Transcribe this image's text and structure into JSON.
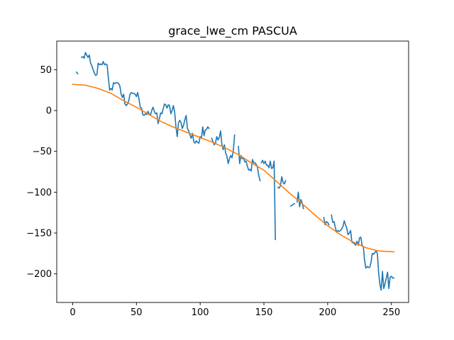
{
  "chart_data": {
    "type": "line",
    "title": "grace_lwe_cm PASCUA",
    "xlabel": "",
    "ylabel": "",
    "xlim": [
      -12.5,
      263.5
    ],
    "ylim": [
      -235,
      85
    ],
    "xticks": [
      0,
      50,
      100,
      150,
      200,
      250
    ],
    "yticks": [
      50,
      0,
      -50,
      -100,
      -150,
      -200
    ],
    "grid": false,
    "legend": "none",
    "series": [
      {
        "color": "#1f77b4",
        "segments": [
          [
            [
              3,
              47
            ],
            [
              4,
              45
            ]
          ],
          [
            [
              7,
              65
            ],
            [
              8,
              66
            ],
            [
              9,
              64
            ],
            [
              10,
              71
            ],
            [
              11,
              68
            ],
            [
              12,
              65
            ],
            [
              13,
              68
            ],
            [
              14,
              58
            ],
            [
              15,
              55
            ],
            [
              16,
              50
            ],
            [
              17,
              46
            ],
            [
              18,
              43
            ],
            [
              19,
              44
            ],
            [
              20,
              58
            ],
            [
              21,
              56
            ],
            [
              22,
              57
            ],
            [
              23,
              56
            ],
            [
              24,
              60
            ],
            [
              25,
              56
            ],
            [
              26,
              57
            ],
            [
              27,
              56
            ],
            [
              28,
              40
            ],
            [
              29,
              25
            ],
            [
              30,
              27
            ],
            [
              31,
              25
            ],
            [
              32,
              34
            ],
            [
              33,
              33
            ],
            [
              34,
              34
            ],
            [
              35,
              34
            ],
            [
              36,
              33
            ],
            [
              37,
              30
            ],
            [
              38,
              20
            ],
            [
              39,
              16
            ],
            [
              40,
              20
            ],
            [
              41,
              8
            ],
            [
              42,
              6
            ],
            [
              43,
              8
            ],
            [
              44,
              12
            ],
            [
              45,
              20
            ],
            [
              46,
              22
            ],
            [
              47,
              21
            ],
            [
              48,
              21
            ],
            [
              49,
              20
            ],
            [
              50,
              17
            ],
            [
              51,
              22
            ],
            [
              52,
              14
            ],
            [
              53,
              4
            ],
            [
              54,
              3
            ],
            [
              55,
              -5
            ],
            [
              56,
              -6
            ],
            [
              57,
              -4
            ],
            [
              58,
              -5
            ],
            [
              59,
              -1
            ],
            [
              60,
              -4
            ],
            [
              61,
              -6
            ],
            [
              62,
              0
            ],
            [
              63,
              4
            ],
            [
              64,
              -1
            ],
            [
              65,
              -4
            ],
            [
              66,
              -3
            ],
            [
              67,
              -16
            ],
            [
              68,
              -10
            ],
            [
              69,
              -3
            ],
            [
              70,
              -4
            ],
            [
              71,
              2
            ],
            [
              72,
              8
            ],
            [
              73,
              7
            ],
            [
              74,
              3
            ],
            [
              75,
              7
            ],
            [
              76,
              6
            ],
            [
              77,
              -4
            ],
            [
              78,
              0
            ],
            [
              79,
              6
            ],
            [
              80,
              -2
            ],
            [
              81,
              -20
            ],
            [
              82,
              -32
            ],
            [
              83,
              -15
            ],
            [
              84,
              -12
            ],
            [
              85,
              -15
            ],
            [
              86,
              -22
            ],
            [
              87,
              -18
            ],
            [
              88,
              -11
            ],
            [
              89,
              -6
            ],
            [
              90,
              -22
            ],
            [
              91,
              -25
            ],
            [
              92,
              -30
            ],
            [
              93,
              -34
            ],
            [
              94,
              -28
            ],
            [
              95,
              -38
            ],
            [
              96,
              -40
            ],
            [
              97,
              -37
            ],
            [
              98,
              -39
            ],
            [
              99,
              -40
            ],
            [
              100,
              -32
            ],
            [
              101,
              -34
            ],
            [
              102,
              -20
            ],
            [
              103,
              -31
            ],
            [
              104,
              -24
            ],
            [
              105,
              -23
            ],
            [
              106,
              -20
            ],
            [
              107,
              -22
            ]
          ],
          [
            [
              109,
              -34
            ],
            [
              110,
              -38
            ],
            [
              111,
              -42
            ],
            [
              112,
              -40
            ],
            [
              113,
              -32
            ],
            [
              114,
              -36
            ],
            [
              115,
              -33
            ],
            [
              116,
              -25
            ],
            [
              117,
              -41
            ],
            [
              118,
              -48
            ],
            [
              119,
              -42
            ],
            [
              120,
              -52
            ],
            [
              121,
              -56
            ],
            [
              122,
              -65
            ],
            [
              123,
              -59
            ],
            [
              124,
              -55
            ],
            [
              125,
              -58
            ],
            [
              126,
              -49
            ],
            [
              127,
              -30
            ]
          ],
          [
            [
              130,
              -44
            ],
            [
              131,
              -65
            ],
            [
              132,
              -55
            ],
            [
              133,
              -59
            ],
            [
              134,
              -58
            ],
            [
              135,
              -63
            ],
            [
              136,
              -62
            ],
            [
              137,
              -68
            ],
            [
              138,
              -73
            ],
            [
              139,
              -72
            ],
            [
              140,
              -74
            ],
            [
              141,
              -60
            ],
            [
              142,
              -64
            ],
            [
              143,
              -64
            ],
            [
              144,
              -66
            ],
            [
              145,
              -70
            ],
            [
              146,
              -80
            ],
            [
              147,
              -86
            ]
          ],
          [
            [
              148,
              -64
            ],
            [
              149,
              -61
            ],
            [
              150,
              -65
            ],
            [
              151,
              -62
            ],
            [
              152,
              -67
            ],
            [
              153,
              -67
            ],
            [
              154,
              -70
            ],
            [
              155,
              -62
            ],
            [
              156,
              -71
            ],
            [
              157,
              -70
            ],
            [
              158,
              -62
            ],
            [
              159,
              -158
            ]
          ],
          [
            [
              161,
              -94
            ],
            [
              162,
              -95
            ],
            [
              163,
              -92
            ],
            [
              164,
              -81
            ],
            [
              165,
              -88
            ],
            [
              166,
              -90
            ],
            [
              167,
              -86
            ]
          ],
          [
            [
              171,
              -117
            ],
            [
              172,
              -116
            ],
            [
              173,
              -115
            ],
            [
              174,
              -114
            ]
          ],
          [
            [
              176,
              -112
            ],
            [
              177,
              -100
            ],
            [
              178,
              -118
            ],
            [
              179,
              -109
            ],
            [
              180,
              -113
            ],
            [
              181,
              -120
            ]
          ],
          [
            [
              197,
              -131
            ],
            [
              198,
              -140
            ],
            [
              199,
              -136
            ],
            [
              200,
              -137
            ],
            [
              201,
              -140
            ]
          ],
          [
            [
              203,
              -128
            ],
            [
              204,
              -137
            ],
            [
              205,
              -136
            ],
            [
              206,
              -143
            ],
            [
              207,
              -149
            ],
            [
              208,
              -147
            ],
            [
              209,
              -148
            ],
            [
              210,
              -147
            ],
            [
              211,
              -145
            ],
            [
              212,
              -142
            ],
            [
              213,
              -135
            ],
            [
              214,
              -140
            ],
            [
              215,
              -144
            ],
            [
              216,
              -152
            ],
            [
              217,
              -150
            ],
            [
              218,
              -147
            ],
            [
              219,
              -161
            ],
            [
              220,
              -162
            ],
            [
              221,
              -163
            ],
            [
              222,
              -165
            ],
            [
              223,
              -160
            ],
            [
              224,
              -165
            ],
            [
              225,
              -156
            ],
            [
              226,
              -155
            ],
            [
              227,
              -165
            ],
            [
              228,
              -167
            ],
            [
              229,
              -184
            ],
            [
              230,
              -193
            ],
            [
              231,
              -191
            ],
            [
              232,
              -192
            ],
            [
              233,
              -192
            ],
            [
              234,
              -186
            ],
            [
              235,
              -175
            ],
            [
              236,
              -176
            ],
            [
              237,
              -174
            ],
            [
              238,
              -172
            ],
            [
              239,
              -175
            ],
            [
              240,
              -199
            ],
            [
              241,
              -213
            ],
            [
              242,
              -220
            ],
            [
              243,
              -197
            ],
            [
              244,
              -218
            ],
            [
              245,
              -212
            ],
            [
              246,
              -205
            ],
            [
              247,
              -198
            ],
            [
              248,
              -218
            ],
            [
              249,
              -204
            ],
            [
              250,
              -203
            ],
            [
              251,
              -205
            ],
            [
              252,
              -205
            ]
          ]
        ]
      },
      {
        "color": "#ff7f0e",
        "values": [
          [
            0,
            32
          ],
          [
            10,
            31
          ],
          [
            20,
            27
          ],
          [
            30,
            21
          ],
          [
            40,
            12
          ],
          [
            50,
            4
          ],
          [
            60,
            -5
          ],
          [
            70,
            -14
          ],
          [
            80,
            -21
          ],
          [
            90,
            -27
          ],
          [
            100,
            -33
          ],
          [
            110,
            -39
          ],
          [
            120,
            -46
          ],
          [
            130,
            -54
          ],
          [
            140,
            -64
          ],
          [
            150,
            -73
          ],
          [
            160,
            -87
          ],
          [
            170,
            -101
          ],
          [
            180,
            -114
          ],
          [
            190,
            -128
          ],
          [
            200,
            -141
          ],
          [
            210,
            -152
          ],
          [
            220,
            -161
          ],
          [
            230,
            -168
          ],
          [
            240,
            -172
          ],
          [
            252,
            -173
          ]
        ]
      }
    ]
  }
}
